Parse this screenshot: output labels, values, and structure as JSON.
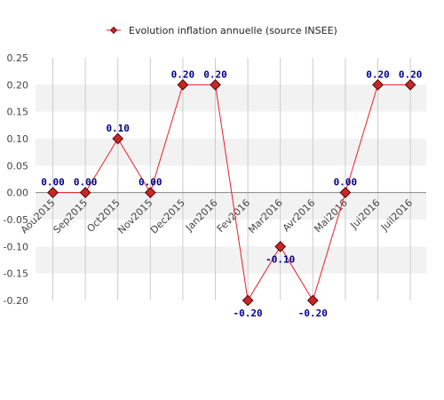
{
  "chart_data": {
    "type": "line",
    "title": "",
    "xlabel": "",
    "ylabel": "",
    "categories": [
      "Aou2015",
      "Sep2015",
      "Oct2015",
      "Nov2015",
      "Dec2015",
      "Jan2016",
      "Fev2016",
      "Mar2016",
      "Avr2016",
      "Mai2016",
      "Jui2016",
      "Juil2016"
    ],
    "series": [
      {
        "name": "Evolution inflation annuelle (source INSEE)",
        "values": [
          0.0,
          0.0,
          0.1,
          0.0,
          0.2,
          0.2,
          -0.2,
          -0.1,
          -0.2,
          0.0,
          0.2,
          0.2
        ],
        "labels": [
          "0.00",
          "0.00",
          "0.10",
          "0.00",
          "0.20",
          "0.20",
          "-0.20",
          "-0.10",
          "-0.20",
          "0.00",
          "0.20",
          "0.20"
        ]
      }
    ],
    "ylim": [
      -0.2,
      0.25
    ],
    "yticks": [
      "0.25",
      "0.20",
      "0.15",
      "0.10",
      "0.05",
      "0.00",
      "-0.05",
      "-0.10",
      "-0.15",
      "-0.20"
    ],
    "ytick_values": [
      0.25,
      0.2,
      0.15,
      0.1,
      0.05,
      0.0,
      -0.05,
      -0.1,
      -0.15,
      -0.2
    ],
    "grid": true,
    "legend_position": "top-center",
    "colors": {
      "line": "#e8202a",
      "marker_fill": "#c62828",
      "marker_stroke": "#5a0000",
      "label": "#00008b",
      "band": "#f2f2f2",
      "grid": "#cccccc",
      "zero_line": "#888888"
    }
  }
}
